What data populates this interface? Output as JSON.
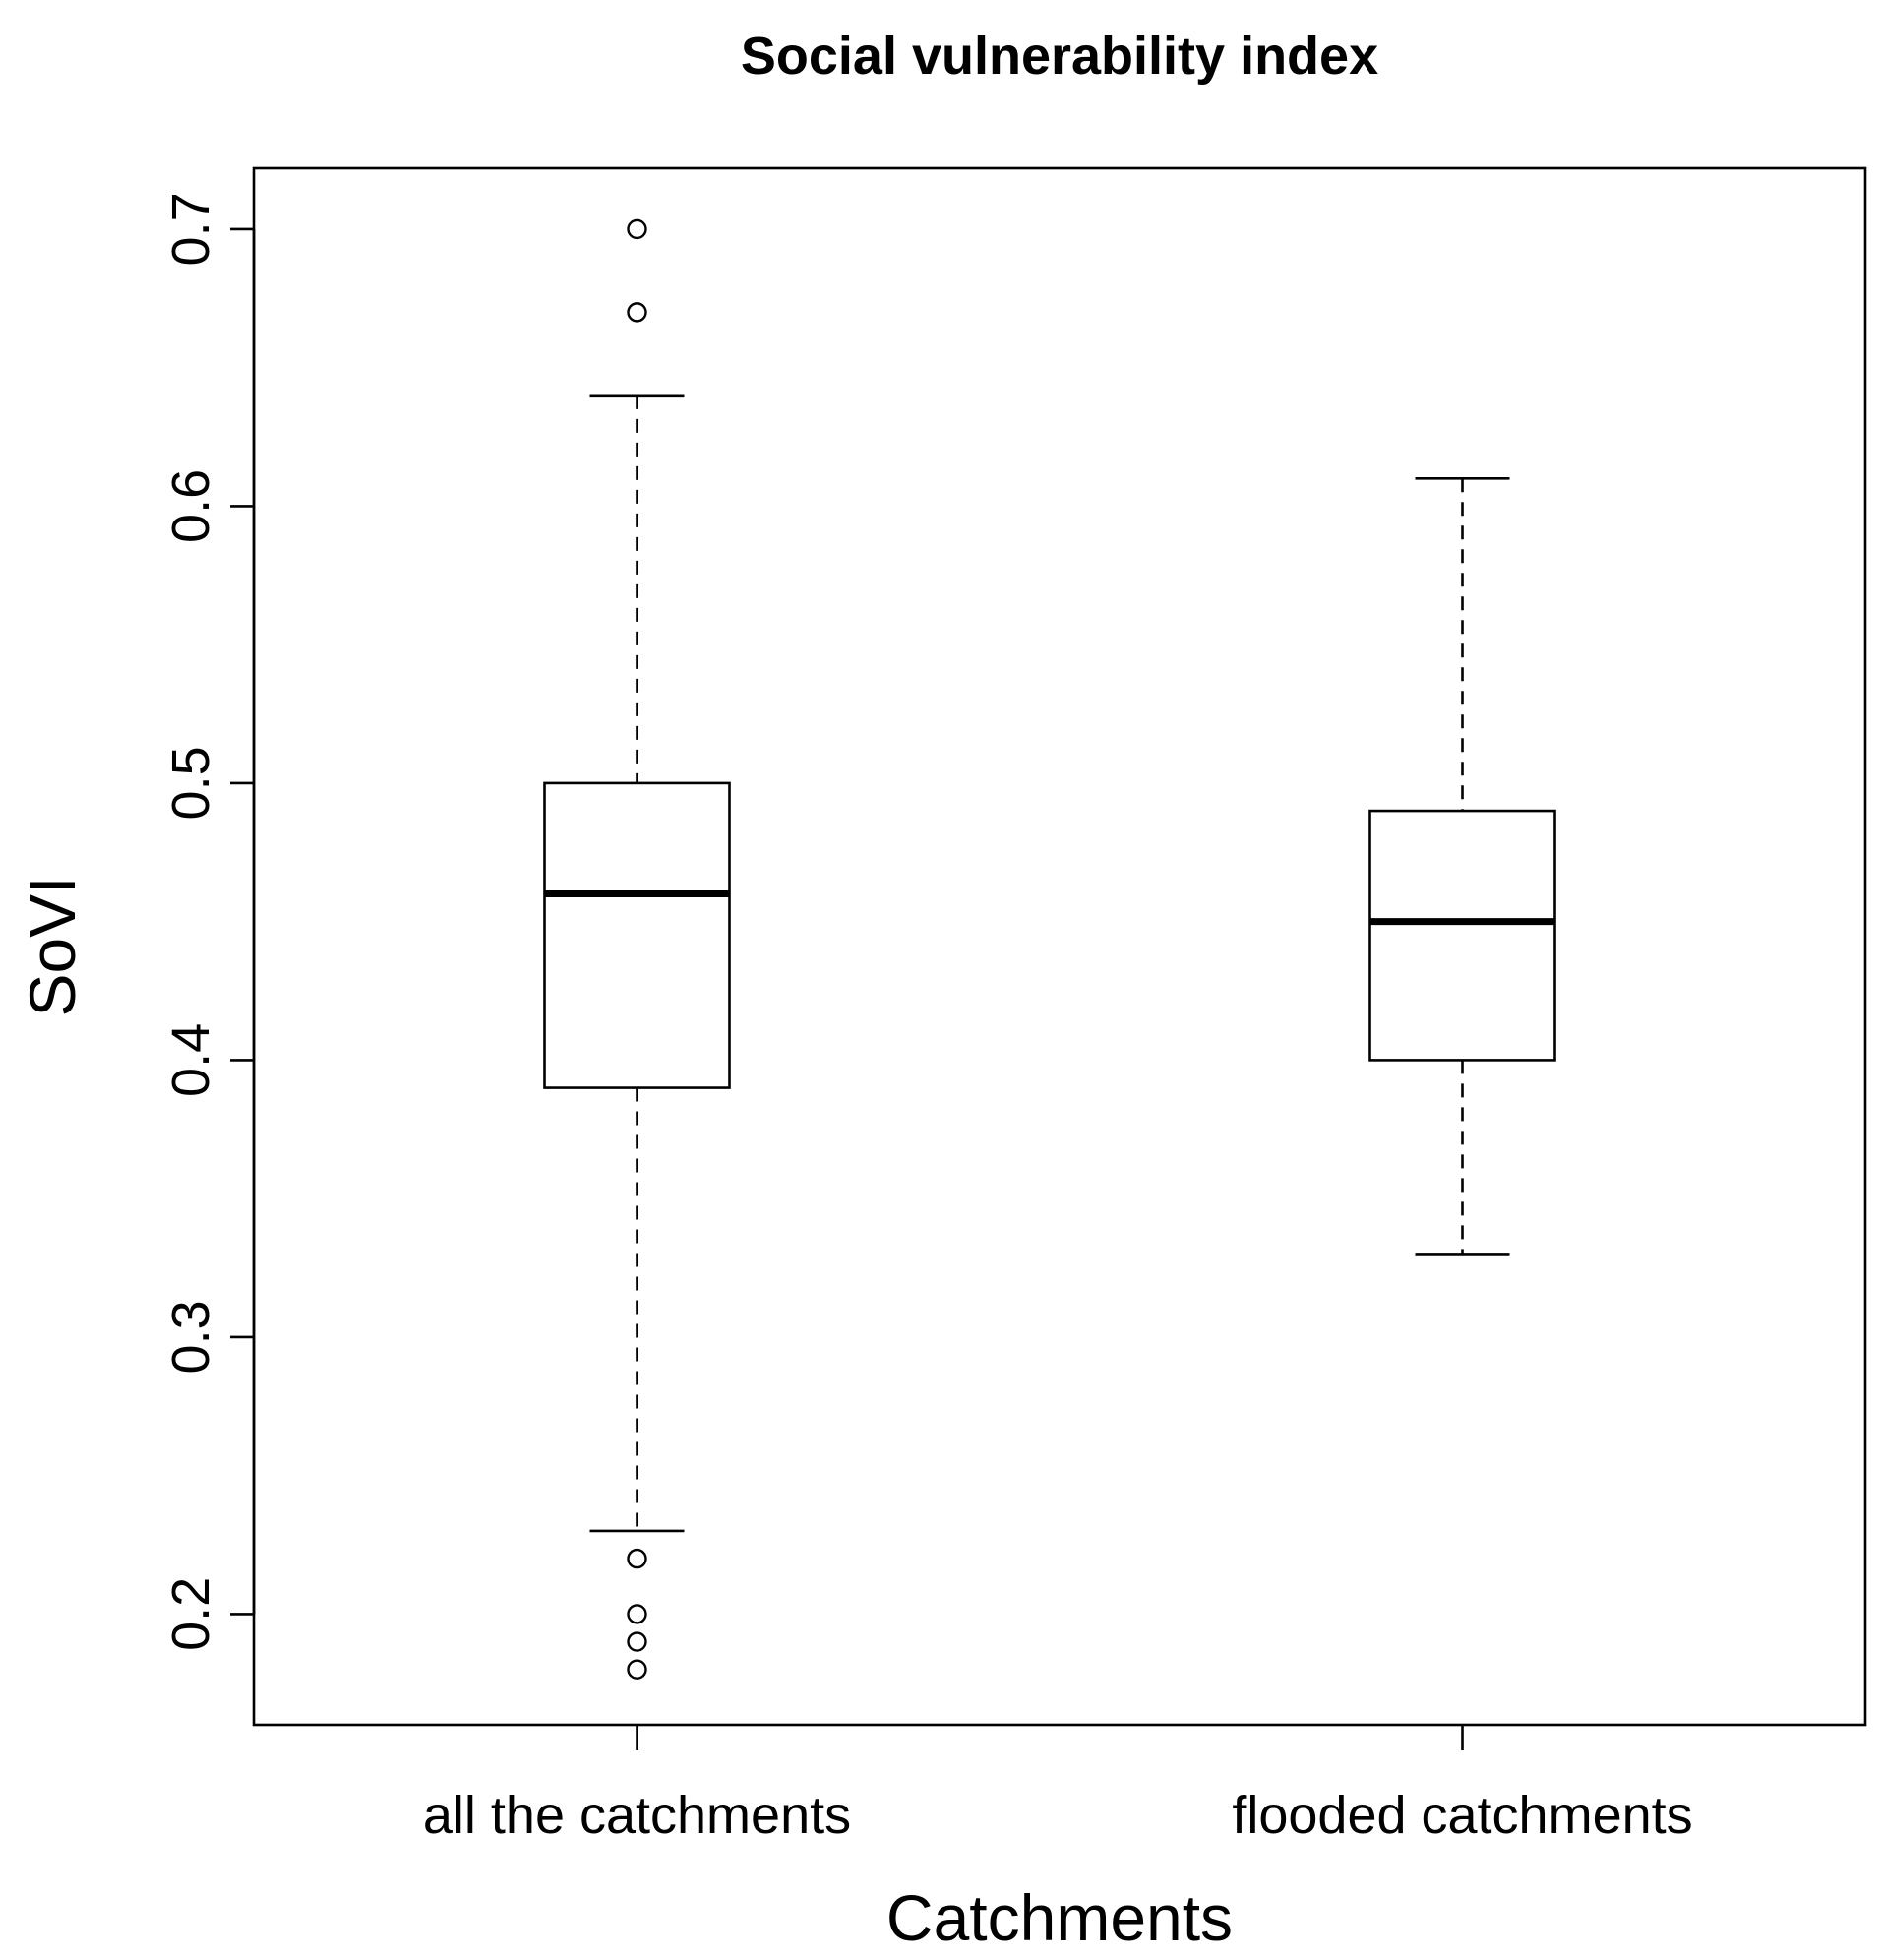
{
  "chart_data": {
    "type": "boxplot",
    "title": "Social vulnerability index",
    "xlabel": "Catchments",
    "ylabel": "SoVI",
    "ylim": [
      0.16,
      0.722
    ],
    "yticks": [
      0.2,
      0.3,
      0.4,
      0.5,
      0.6,
      0.7
    ],
    "ytick_labels": [
      "0.2",
      "0.3",
      "0.4",
      "0.5",
      "0.6",
      "0.7"
    ],
    "grid": false,
    "colors": {
      "line": "#000000",
      "box_fill": "#ffffff"
    },
    "categories": [
      "all the catchments",
      "flooded catchments"
    ],
    "boxes": [
      {
        "name": "all the catchments",
        "whisker_low": 0.23,
        "q1": 0.39,
        "median": 0.46,
        "q3": 0.5,
        "whisker_high": 0.64,
        "outliers": [
          0.7,
          0.67,
          0.22,
          0.2,
          0.19,
          0.18
        ]
      },
      {
        "name": "flooded catchments",
        "whisker_low": 0.33,
        "q1": 0.4,
        "median": 0.45,
        "q3": 0.49,
        "whisker_high": 0.61,
        "outliers": []
      }
    ]
  }
}
